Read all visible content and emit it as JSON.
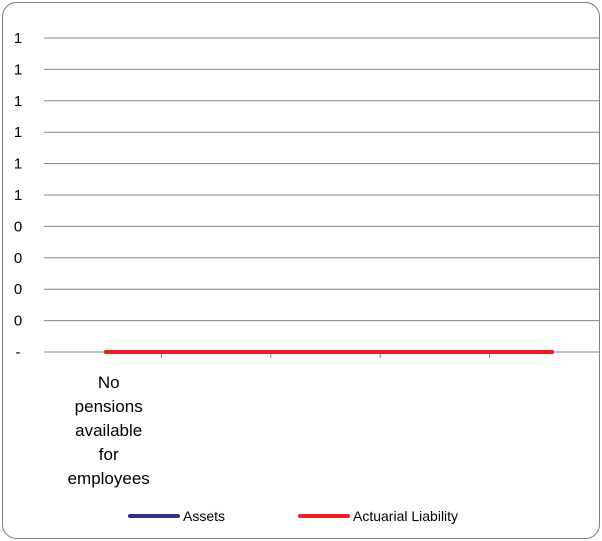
{
  "chart_data": {
    "type": "line",
    "title": "",
    "xlabel": "",
    "ylabel": "",
    "categories": [
      "No pensions available for employees",
      "",
      "",
      "",
      ""
    ],
    "y_tick_labels": [
      "1",
      "1",
      "1",
      "1",
      "1",
      "1",
      "0",
      "0",
      "0",
      "0",
      "-"
    ],
    "ylim": [
      0,
      1
    ],
    "grid": true,
    "legend_position": "bottom",
    "series": [
      {
        "name": "Assets",
        "color": "#2e3192",
        "values": [
          0,
          0,
          0,
          0,
          0
        ]
      },
      {
        "name": "Actuarial Liability",
        "color": "#ed1c24",
        "values": [
          0,
          0,
          0,
          0,
          0
        ]
      }
    ]
  }
}
